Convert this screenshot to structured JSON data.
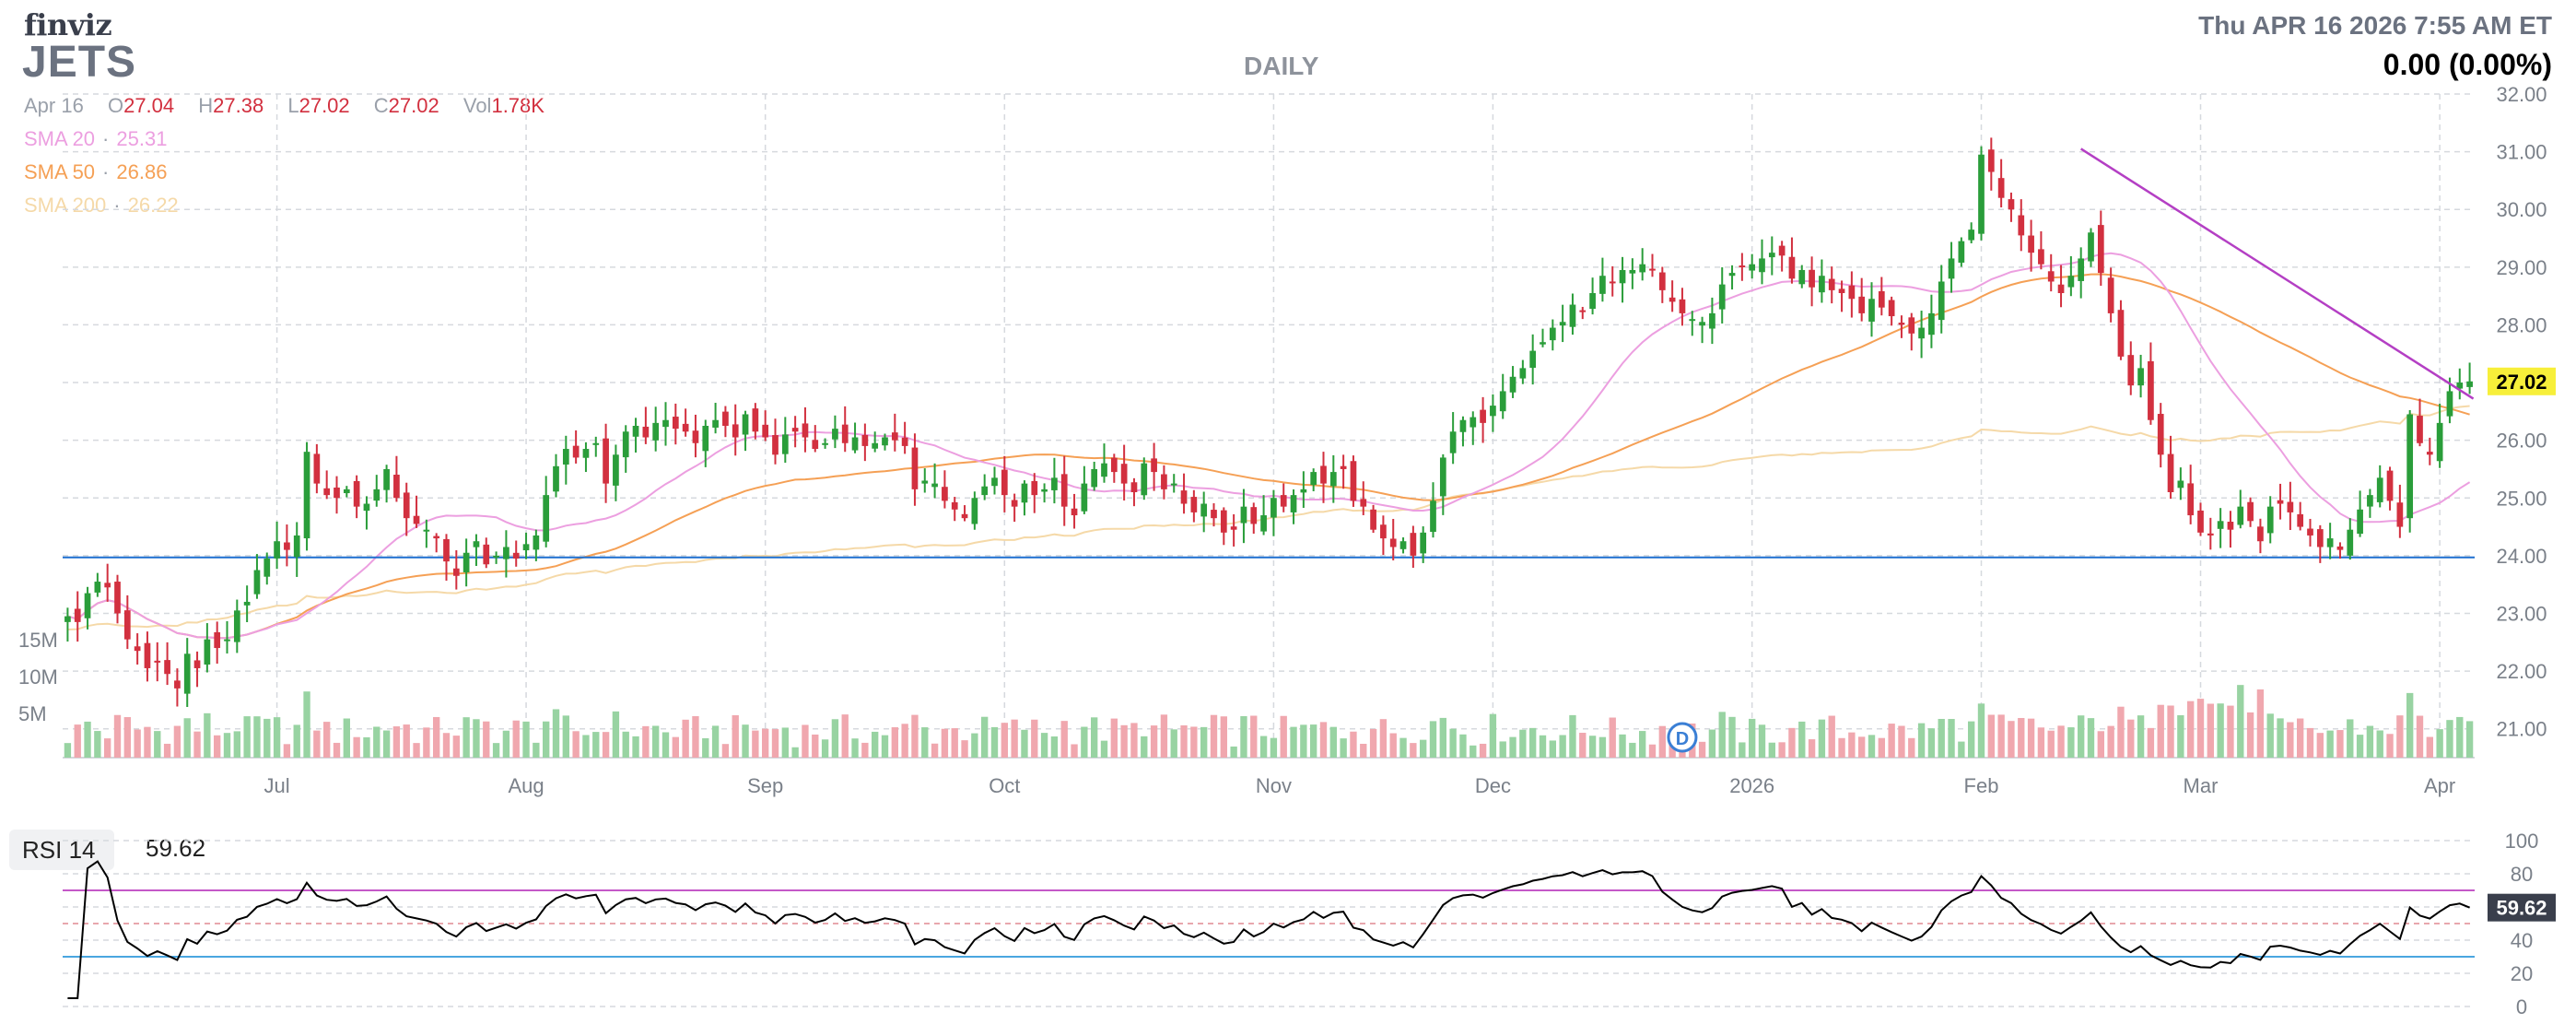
{
  "header": {
    "logo": "finviz",
    "ticker": "JETS",
    "timeframe": "DAILY",
    "datetime": "Thu APR 16 2026 7:55 AM ET",
    "change": "0.00 (0.00%)"
  },
  "ohlc": {
    "date": "Apr 16",
    "open_label": "O",
    "open": "27.04",
    "high_label": "H",
    "high": "27.38",
    "low_label": "L",
    "low": "27.02",
    "close_label": "C",
    "close": "27.02",
    "vol_label": "Vol",
    "vol": "1.78K"
  },
  "sma": [
    {
      "label": "SMA 20",
      "value": "25.31",
      "color": "#ec9fe0"
    },
    {
      "label": "SMA 50",
      "value": "26.86",
      "color": "#f5a055"
    },
    {
      "label": "SMA 200",
      "value": "26.22",
      "color": "#f5d9a8"
    }
  ],
  "colors": {
    "up": "#2a9d3a",
    "down": "#d2303f",
    "vol_up": "#98d3a2",
    "vol_down": "#f0a7ae",
    "grid": "#d6d9de",
    "support": "#1d6fd0",
    "trendline": "#b43fc4",
    "rsi_line": "#000000",
    "rsi_upper": "#c458c8",
    "rsi_lower": "#4aa6e0",
    "last_price_bg": "#f7ef3a",
    "earnings_badge": "#3a7fd5"
  },
  "chart_data": [
    {
      "type": "candlestick",
      "title": "JETS Daily",
      "ylim": [
        20.5,
        32
      ],
      "y_ticks": [
        "32.00",
        "31.00",
        "30.00",
        "29.00",
        "28.00",
        "27.00",
        "26.00",
        "25.00",
        "24.00",
        "23.00",
        "22.00",
        "21.00"
      ],
      "x_tick_labels": [
        "Jul",
        "Aug",
        "Sep",
        "Oct",
        "Nov",
        "Dec",
        "2026",
        "Feb",
        "Mar",
        "Apr"
      ],
      "x_tick_index": [
        21,
        46,
        70,
        94,
        121,
        143,
        169,
        192,
        214,
        238
      ],
      "volume_axis_labels": [
        "15M",
        "10M",
        "5M"
      ],
      "earnings_marker": "D",
      "earnings_index": 162,
      "last_price": "27.02",
      "support_level": 23.97,
      "closes": [
        22.95,
        22.85,
        23.35,
        23.55,
        23.45,
        23.0,
        22.55,
        22.35,
        22.05,
        22.15,
        21.95,
        21.7,
        22.3,
        22.05,
        22.55,
        22.4,
        22.55,
        23.05,
        23.2,
        23.75,
        23.95,
        24.25,
        24.1,
        24.35,
        25.8,
        25.25,
        25.05,
        25.0,
        25.15,
        24.85,
        24.9,
        25.15,
        25.5,
        25.0,
        24.65,
        24.55,
        24.45,
        24.3,
        23.9,
        23.65,
        24.05,
        24.25,
        23.85,
        24.0,
        24.15,
        23.95,
        24.2,
        24.35,
        25.05,
        25.55,
        25.85,
        25.7,
        25.85,
        25.95,
        25.25,
        25.75,
        26.15,
        26.25,
        26.05,
        26.3,
        26.35,
        26.2,
        26.15,
        25.95,
        26.25,
        26.35,
        26.25,
        26.05,
        26.45,
        26.15,
        26.05,
        25.75,
        26.1,
        26.15,
        26.05,
        25.85,
        25.95,
        26.2,
        25.95,
        26.05,
        25.9,
        25.95,
        26.05,
        26.0,
        25.9,
        25.15,
        25.3,
        25.25,
        24.95,
        24.8,
        24.65,
        25.0,
        25.2,
        25.35,
        25.05,
        24.85,
        25.25,
        25.05,
        25.15,
        25.35,
        24.85,
        24.7,
        25.25,
        25.5,
        25.6,
        25.45,
        25.25,
        25.1,
        25.6,
        25.45,
        25.15,
        25.25,
        24.9,
        24.75,
        24.9,
        24.65,
        24.4,
        24.45,
        24.85,
        24.55,
        24.7,
        25.0,
        24.85,
        25.05,
        25.15,
        25.45,
        25.25,
        25.45,
        25.5,
        24.95,
        24.85,
        24.45,
        24.3,
        24.15,
        24.25,
        24.0,
        24.4,
        24.95,
        25.7,
        26.15,
        26.35,
        26.4,
        26.3,
        26.6,
        26.85,
        27.1,
        27.25,
        27.55,
        27.7,
        27.95,
        28.05,
        28.35,
        28.25,
        28.55,
        28.85,
        28.75,
        28.95,
        28.95,
        29.05,
        28.95,
        28.6,
        28.4,
        28.2,
        28.1,
        28.05,
        28.2,
        28.7,
        28.9,
        29.0,
        29.05,
        29.15,
        29.25,
        29.2,
        28.8,
        28.95,
        28.65,
        28.85,
        28.6,
        28.55,
        28.45,
        28.2,
        28.45,
        28.3,
        28.15,
        28.0,
        27.85,
        27.95,
        28.2,
        28.75,
        29.15,
        29.45,
        29.65,
        30.95,
        30.65,
        30.2,
        30.0,
        29.55,
        29.25,
        29.05,
        28.75,
        28.55,
        28.85,
        29.15,
        29.6,
        28.9,
        28.2,
        27.45,
        26.95,
        27.25,
        26.35,
        25.75,
        25.1,
        25.3,
        24.7,
        24.4,
        24.35,
        24.6,
        24.45,
        24.85,
        24.6,
        24.25,
        24.85,
        24.9,
        24.75,
        24.5,
        24.35,
        24.15,
        24.3,
        24.1,
        24.45,
        24.8,
        25.05,
        25.35,
        24.95,
        24.5,
        26.45,
        25.95,
        25.75,
        26.3,
        26.85,
        27.0,
        27.02
      ],
      "rsi": {
        "label": "RSI 14",
        "value": "59.62",
        "ylim": [
          0,
          100
        ],
        "y_ticks": [
          "100",
          "80",
          "60",
          "40",
          "20",
          "0"
        ],
        "overbought": 70,
        "oversold": 30,
        "mid": 50
      }
    }
  ]
}
